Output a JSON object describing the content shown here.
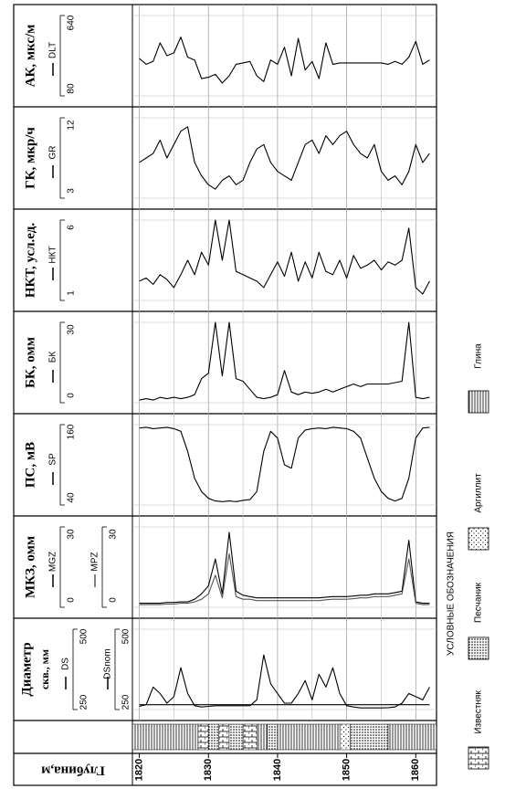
{
  "chart_data": {
    "type": "well-log",
    "x_label": "Глубина,м",
    "x": [
      1820,
      1821,
      1822,
      1823,
      1824,
      1825,
      1826,
      1827,
      1828,
      1829,
      1830,
      1831,
      1832,
      1833,
      1834,
      1835,
      1836,
      1837,
      1838,
      1839,
      1840,
      1841,
      1842,
      1843,
      1844,
      1845,
      1846,
      1847,
      1848,
      1849,
      1850,
      1851,
      1852,
      1853,
      1854,
      1855,
      1856,
      1857,
      1858,
      1859,
      1860,
      1861,
      1862
    ],
    "xlim": [
      1819,
      1863
    ],
    "xticks": [
      1820,
      1830,
      1840,
      1850,
      1860
    ],
    "minor_xticks": [
      1825,
      1835,
      1845,
      1855
    ],
    "tracks": [
      {
        "title": "АК, мкс/м",
        "series": [
          {
            "name": "DLT",
            "color": "#000000",
            "ylim": [
              80,
              640
            ],
            "yticks": [
              80,
              640
            ],
            "values": [
              340,
              300,
              320,
              450,
              360,
              380,
              490,
              350,
              330,
              200,
              210,
              230,
              170,
              220,
              300,
              310,
              320,
              220,
              180,
              330,
              300,
              420,
              220,
              480,
              260,
              320,
              200,
              450,
              300,
              310,
              310,
              310,
              310,
              310,
              310,
              310,
              300,
              320,
              300,
              350,
              460,
              300,
              330
            ]
          }
        ]
      },
      {
        "title": "ГК, мкр/ч",
        "series": [
          {
            "name": "GR",
            "color": "#000000",
            "ylim": [
              3,
              12
            ],
            "yticks": [
              3,
              12
            ],
            "values": [
              7,
              7.5,
              8,
              9.5,
              7.5,
              9,
              10.5,
              11,
              7,
              5.5,
              4.5,
              4,
              5,
              5.5,
              4.5,
              5,
              7,
              8.5,
              9,
              7,
              6,
              5.5,
              5,
              7,
              9,
              9.5,
              8,
              10,
              9,
              10,
              10.5,
              9,
              8,
              7.5,
              9,
              6,
              5,
              5.5,
              4.5,
              6,
              9,
              7,
              8
            ]
          }
        ]
      },
      {
        "title": "НКТ, усл.ед.",
        "series": [
          {
            "name": "НКТ",
            "color": "#000000",
            "ylim": [
              1,
              6
            ],
            "yticks": [
              1,
              6
            ],
            "values": [
              2.2,
              2.4,
              2,
              2.6,
              2.3,
              1.8,
              2.6,
              3.5,
              2.6,
              4,
              3.2,
              6,
              3.5,
              6,
              2.8,
              2.6,
              2.4,
              2.2,
              1.8,
              2.6,
              3.4,
              2.5,
              4,
              2.2,
              3.4,
              2.4,
              4,
              2.8,
              2.6,
              3.5,
              2.4,
              3.8,
              3,
              3.2,
              3.5,
              2.9,
              3.4,
              3.2,
              3.5,
              5.5,
              1.8,
              1.4,
              2.2
            ]
          }
        ]
      },
      {
        "title": "БК, омм",
        "series": [
          {
            "name": "БК",
            "color": "#000000",
            "ylim": [
              0,
              30
            ],
            "yticks": [
              0,
              30
            ],
            "values": [
              1,
              1.5,
              1,
              2,
              1.5,
              2,
              1.5,
              2,
              3,
              9,
              11,
              30,
              10,
              30,
              9,
              8,
              5,
              2,
              1.5,
              2,
              3,
              12,
              4,
              3,
              4,
              3.5,
              4,
              5,
              4,
              5,
              6,
              7,
              6,
              7,
              7,
              7,
              7,
              7.5,
              8,
              30,
              2,
              1.5,
              2
            ]
          }
        ]
      },
      {
        "title": "ПС, мВ",
        "series": [
          {
            "name": "SP",
            "color": "#000000",
            "ylim": [
              40,
              160
            ],
            "yticks": [
              40,
              160
            ],
            "values": [
              155,
              156,
              154,
              155,
              156,
              154,
              150,
              120,
              80,
              60,
              50,
              46,
              45,
              46,
              45,
              47,
              48,
              60,
              120,
              150,
              140,
              100,
              95,
              140,
              152,
              154,
              155,
              154,
              156,
              155,
              154,
              150,
              140,
              110,
              80,
              60,
              50,
              46,
              50,
              80,
              140,
              155,
              156
            ]
          }
        ]
      },
      {
        "title": "МКЗ, омм",
        "series": [
          {
            "name": "MGZ",
            "color": "#000000",
            "ylim": [
              0,
              30
            ],
            "yticks": [
              0,
              30
            ],
            "values": [
              1.5,
              1.5,
              1.5,
              1.5,
              1.8,
              1.8,
              2,
              2,
              3,
              5,
              8,
              18,
              5,
              28,
              6,
              4.5,
              4,
              3.5,
              3.5,
              3.5,
              3.5,
              3.5,
              3.5,
              3.5,
              3.5,
              3.5,
              3.5,
              3.8,
              4,
              4,
              4,
              4.2,
              4.5,
              4.5,
              5,
              5,
              5,
              5.5,
              6,
              25,
              2,
              1.5,
              1.5
            ]
          },
          {
            "name": "MPZ",
            "color": "#555555",
            "ylim": [
              0,
              30
            ],
            "yticks": [
              0,
              30
            ],
            "values": [
              1,
              1,
              1,
              1,
              1.2,
              1.2,
              1.5,
              1.5,
              2,
              3,
              5,
              12,
              3.5,
              20,
              4,
              3,
              3,
              2.5,
              2.5,
              2.5,
              2.5,
              2.5,
              2.5,
              2.5,
              2.5,
              2.5,
              2.5,
              2.8,
              3,
              3,
              3,
              3.2,
              3.5,
              3.5,
              4,
              4,
              4,
              4.5,
              5,
              18,
              1.5,
              1,
              1
            ]
          }
        ]
      },
      {
        "title": "Диаметр",
        "subtitle": "скв., мм",
        "series": [
          {
            "name": "DS",
            "color": "#000000",
            "ylim": [
              250,
              500
            ],
            "yticks": [
              250,
              500
            ],
            "values": [
              260,
              265,
              320,
              300,
              270,
              290,
              380,
              300,
              262,
              258,
              260,
              262,
              262,
              262,
              262,
              262,
              262,
              280,
              420,
              330,
              300,
              270,
              270,
              300,
              340,
              280,
              360,
              320,
              380,
              300,
              262,
              258,
              255,
              255,
              255,
              255,
              256,
              258,
              270,
              300,
              290,
              280,
              320
            ]
          },
          {
            "name": "DSnom",
            "color": "#000000",
            "ylim": [
              250,
              500
            ],
            "yticks": [
              250,
              500
            ],
            "values": [
              265,
              265,
              265,
              265,
              265,
              265,
              265,
              265,
              265,
              265,
              265,
              265,
              265,
              265,
              265,
              265,
              265,
              265,
              265,
              265,
              265,
              265,
              265,
              265,
              265,
              265,
              265,
              265,
              265,
              265,
              265,
              265,
              265,
              265,
              265,
              265,
              265,
              265,
              265,
              265,
              265,
              265,
              265
            ]
          }
        ]
      }
    ],
    "legend": {
      "title": "УСЛОВНЫЕ ОБОЗНАЧЕНИЯ",
      "items": [
        {
          "label": "Известняк",
          "intervals": [
            [
              1828.5,
              1830
            ],
            [
              1831.5,
              1833
            ],
            [
              1835,
              1837
            ]
          ]
        },
        {
          "label": "Песчаник",
          "intervals": [
            [
              1830,
              1831.5
            ],
            [
              1833,
              1835
            ],
            [
              1838.5,
              1840
            ],
            [
              1850.5,
              1856
            ]
          ]
        },
        {
          "label": "Аргиллит",
          "intervals": [
            [
              1849,
              1850.5
            ]
          ]
        },
        {
          "label": "Глина",
          "intervals": [
            [
              1819,
              1828.5
            ],
            [
              1837,
              1838.5
            ],
            [
              1840,
              1849
            ],
            [
              1856,
              1863
            ]
          ]
        }
      ]
    }
  }
}
